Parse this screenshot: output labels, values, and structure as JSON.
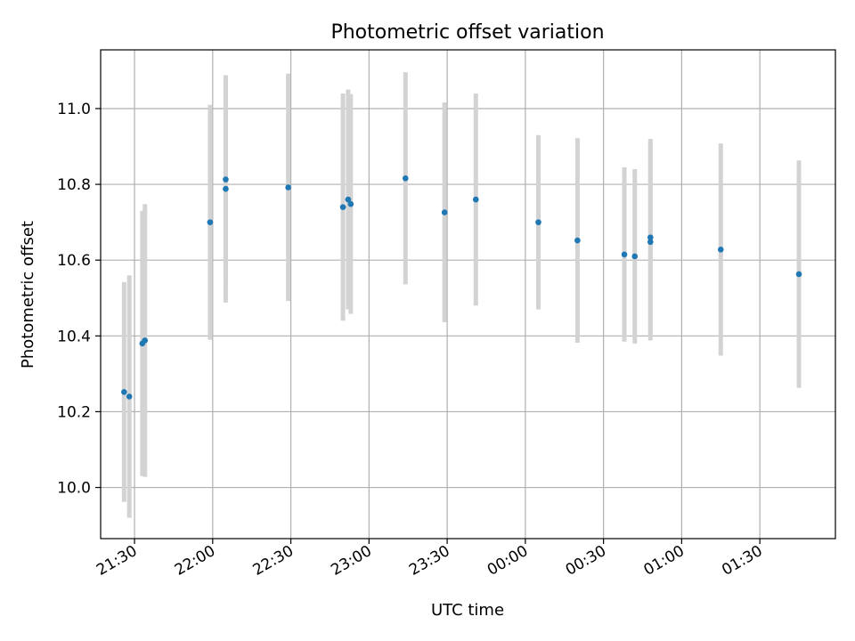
{
  "chart_data": {
    "type": "scatter",
    "title": "Photometric offset variation",
    "xlabel": "UTC time",
    "ylabel": "Photometric offset",
    "x_axis": {
      "kind": "time",
      "range": [
        "21:17",
        "01:59"
      ],
      "ticks": [
        "21:30",
        "22:00",
        "22:30",
        "23:00",
        "23:30",
        "00:00",
        "00:30",
        "01:00",
        "01:30"
      ],
      "tick_label_rotation_deg": 30
    },
    "y_axis": {
      "range": [
        9.865,
        11.155
      ],
      "ticks": [
        10.0,
        10.2,
        10.4,
        10.6,
        10.8,
        11.0
      ],
      "tick_labels": [
        "10.0",
        "10.2",
        "10.4",
        "10.6",
        "10.8",
        "11.0"
      ]
    },
    "grid": true,
    "series": [
      {
        "marker_color": "#1f77b4",
        "errorbar_color": "#d3d3d3",
        "points": [
          {
            "t": "21:26",
            "y": 10.252,
            "err": 0.29
          },
          {
            "t": "21:28",
            "y": 10.24,
            "err": 0.32
          },
          {
            "t": "21:33",
            "y": 10.38,
            "err": 0.35
          },
          {
            "t": "21:34",
            "y": 10.388,
            "err": 0.36
          },
          {
            "t": "21:59",
            "y": 10.7,
            "err": 0.31
          },
          {
            "t": "22:05",
            "y": 10.813,
            "err": 0.27
          },
          {
            "t": "22:05",
            "y": 10.788,
            "err": 0.3
          },
          {
            "t": "22:29",
            "y": 10.792,
            "err": 0.3
          },
          {
            "t": "22:50",
            "y": 10.74,
            "err": 0.3
          },
          {
            "t": "22:52",
            "y": 10.76,
            "err": 0.29
          },
          {
            "t": "22:53",
            "y": 10.748,
            "err": 0.29
          },
          {
            "t": "23:14",
            "y": 10.816,
            "err": 0.28
          },
          {
            "t": "23:29",
            "y": 10.726,
            "err": 0.29
          },
          {
            "t": "23:41",
            "y": 10.76,
            "err": 0.28
          },
          {
            "t": "00:05",
            "y": 10.7,
            "err": 0.23
          },
          {
            "t": "00:20",
            "y": 10.652,
            "err": 0.27
          },
          {
            "t": "00:38",
            "y": 10.615,
            "err": 0.23
          },
          {
            "t": "00:42",
            "y": 10.61,
            "err": 0.23
          },
          {
            "t": "00:48",
            "y": 10.648,
            "err": 0.26
          },
          {
            "t": "00:48",
            "y": 10.66,
            "err": 0.26
          },
          {
            "t": "01:15",
            "y": 10.628,
            "err": 0.28
          },
          {
            "t": "01:45",
            "y": 10.563,
            "err": 0.3
          }
        ]
      }
    ]
  }
}
